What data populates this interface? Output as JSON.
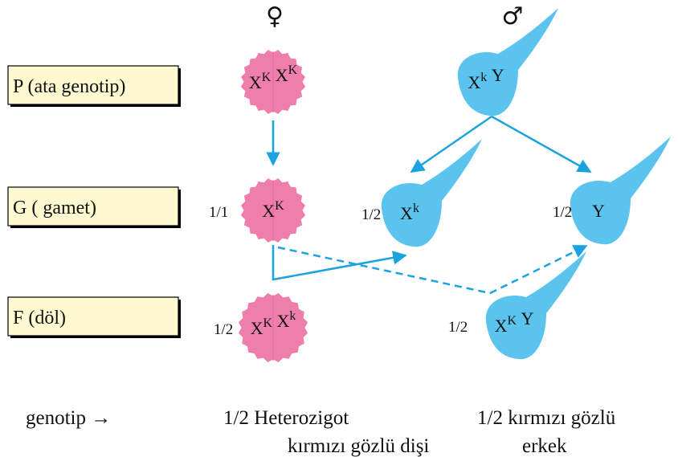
{
  "symbols": {
    "female": "♀",
    "male": "♂"
  },
  "rows": [
    {
      "label": "P (ata genotip)"
    },
    {
      "label": "G ( gamet)"
    },
    {
      "label": "F (döl)"
    }
  ],
  "cells": [
    {
      "parts": [
        {
          "base": "X",
          "sup": "K"
        },
        {
          "base": "X",
          "sup": "K"
        }
      ]
    },
    {
      "parts": [
        {
          "base": "X",
          "sup": "k"
        },
        {
          "base": "Y"
        }
      ]
    },
    {
      "fraction": "1/1",
      "parts": [
        {
          "base": "X",
          "sup": "K"
        }
      ]
    },
    {
      "fraction": "1/2",
      "parts": [
        {
          "base": "X",
          "sup": "k"
        }
      ]
    },
    {
      "fraction": "1/2",
      "parts": [
        {
          "base": "Y"
        }
      ]
    },
    {
      "fraction": "1/2",
      "parts": [
        {
          "base": "X",
          "sup": "K"
        },
        {
          "base": "X",
          "sup": "k"
        }
      ]
    },
    {
      "fraction": "1/2",
      "parts": [
        {
          "base": "X",
          "sup": "K"
        },
        {
          "base": "Y"
        }
      ]
    }
  ],
  "footer": {
    "label": "genotip →",
    "female_line1": "1/2  Heterozigot",
    "female_line2": "kırmızı gözlü dişi",
    "male_line1": "1/2 kırmızı gözlü",
    "male_line2": "erkek"
  }
}
